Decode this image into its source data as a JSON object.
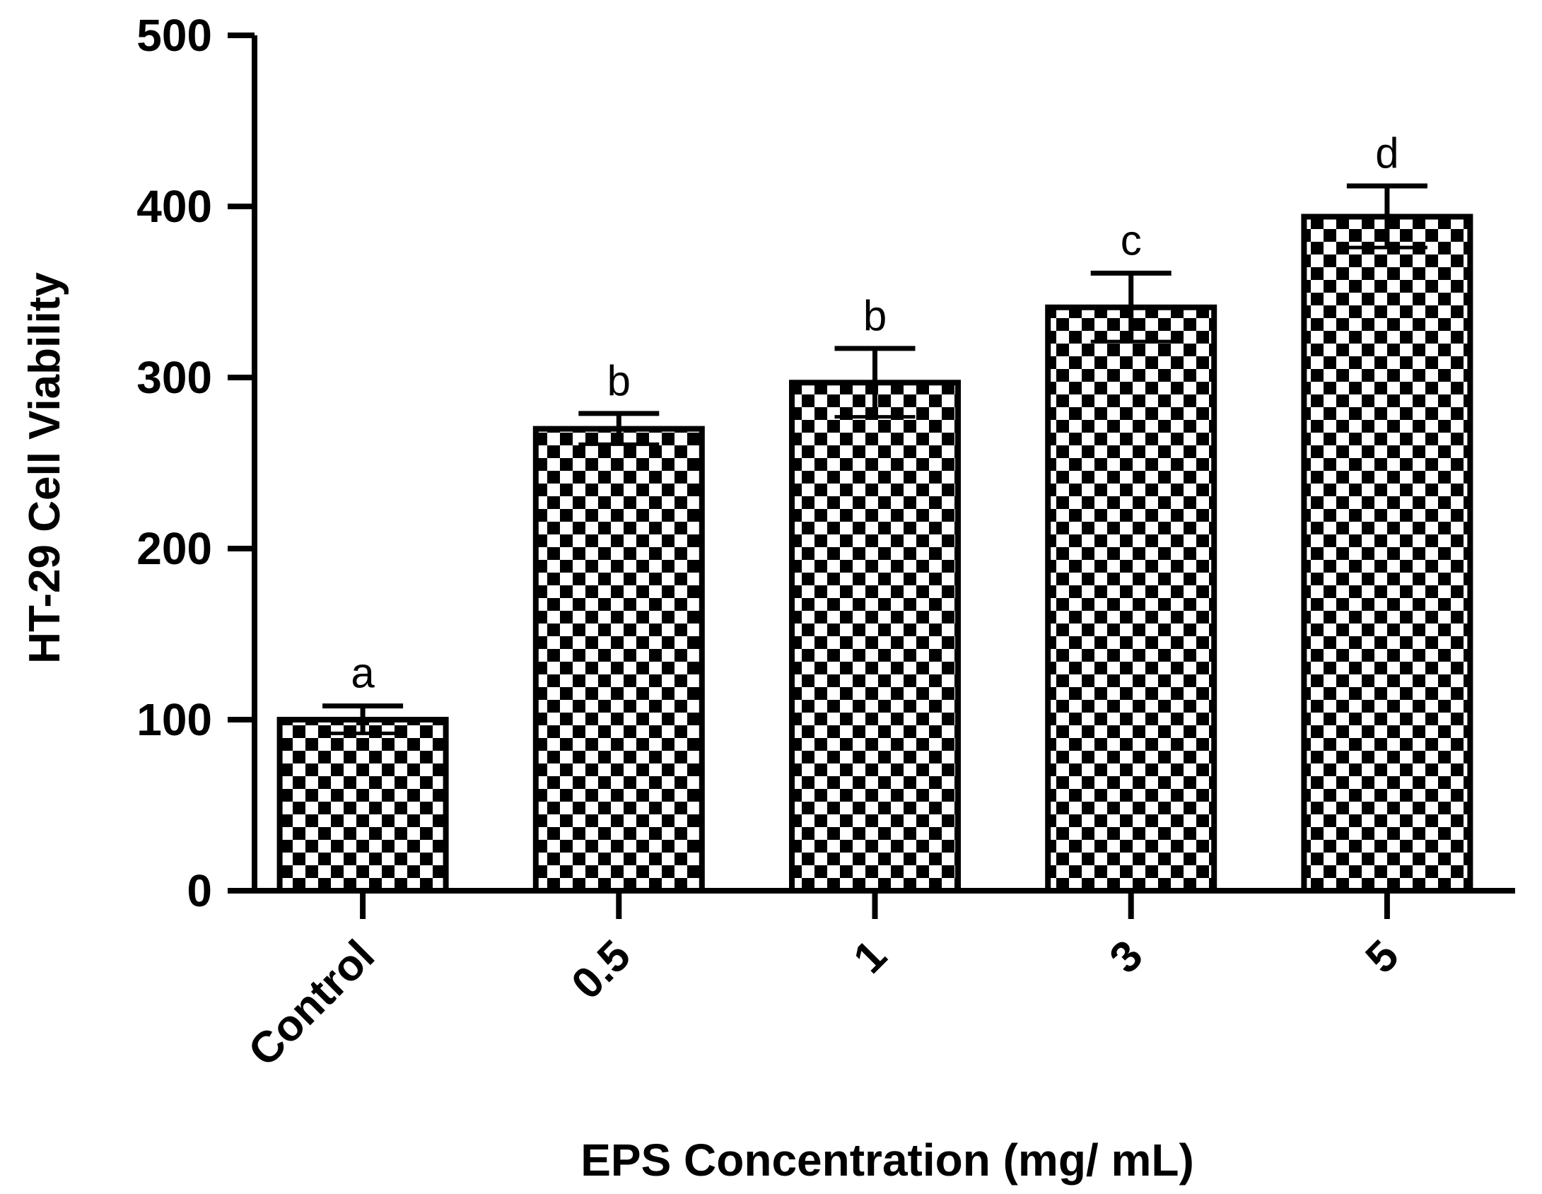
{
  "chart_data": {
    "type": "bar",
    "title": "",
    "xlabel": "EPS Concentration (mg/ mL)",
    "ylabel": "HT-29 Cell Viability",
    "categories": [
      "Control",
      "0.5",
      "1",
      "3",
      "5"
    ],
    "values": [
      100,
      270,
      297,
      341,
      394
    ],
    "errors": [
      8,
      9,
      20,
      20,
      18
    ],
    "significance_labels": [
      "a",
      "b",
      "b",
      "c",
      "d"
    ],
    "ylim": [
      0,
      500
    ],
    "yticks": [
      0,
      100,
      200,
      300,
      400,
      500
    ],
    "grid": false,
    "legend": "none",
    "bar_pattern": "checkerboard",
    "colors": {
      "bar_fill": "#000000",
      "bar_pattern_light": "#ffffff",
      "axis": "#000000"
    }
  }
}
